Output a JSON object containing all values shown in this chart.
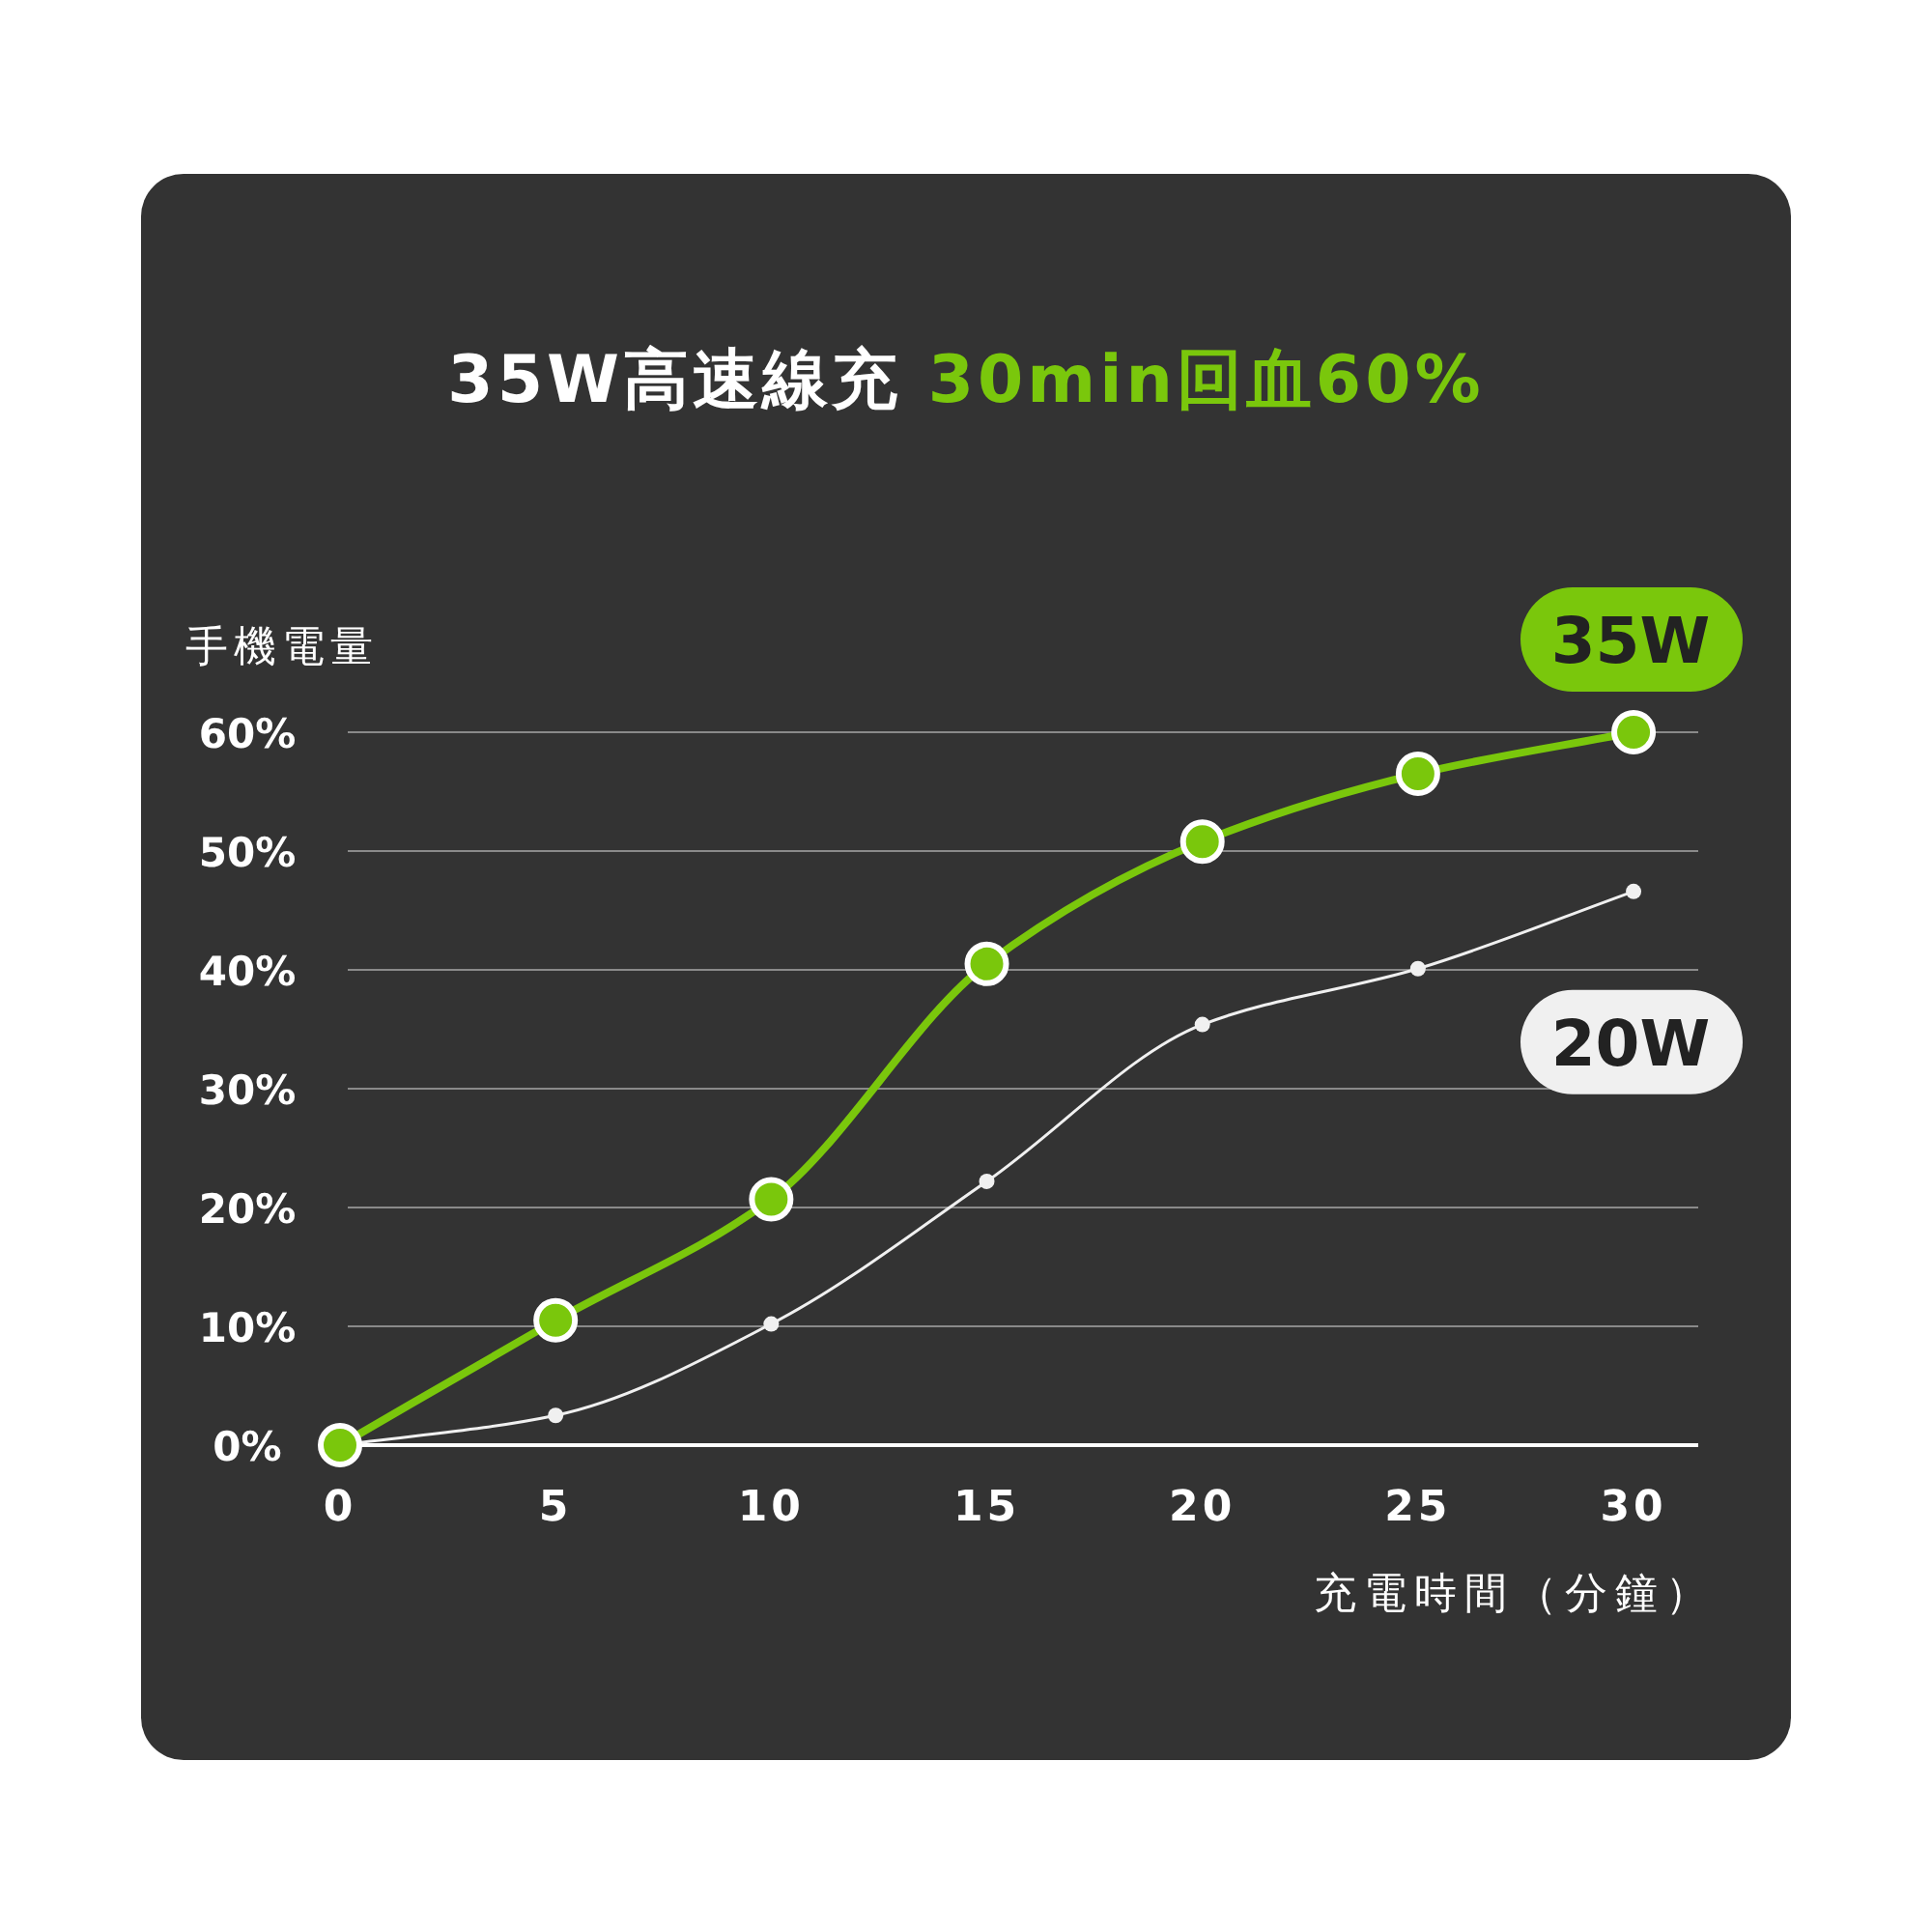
{
  "chart_data": {
    "type": "line",
    "title": "35W高速線充 30min回血60%",
    "ylabel": "手機電量",
    "xlabel": "充電時間（分鐘）",
    "x": [
      0,
      5,
      10,
      15,
      20,
      25,
      30
    ],
    "series": [
      {
        "name": "35W",
        "color": "#7ac70c",
        "values": [
          0,
          10.5,
          20.7,
          40.5,
          50.8,
          56.5,
          60
        ]
      },
      {
        "name": "20W",
        "color": "#f0f0f0",
        "values": [
          0,
          2.5,
          10.2,
          22.2,
          35.4,
          40.1,
          46.6
        ]
      }
    ],
    "xlim": [
      0,
      31.5
    ],
    "ylim": [
      0,
      60
    ],
    "xticks": [
      0,
      5,
      10,
      15,
      20,
      25,
      30
    ],
    "yticks": [
      {
        "value": 0,
        "label": "0%"
      },
      {
        "value": 10,
        "label": "10%"
      },
      {
        "value": 20,
        "label": "20%"
      },
      {
        "value": 30,
        "label": "30%"
      },
      {
        "value": 40,
        "label": "40%"
      },
      {
        "value": 50,
        "label": "50%"
      },
      {
        "value": 60,
        "label": "60%"
      }
    ],
    "grid": "y",
    "legend": false,
    "marker": "circle",
    "line_style": "solid"
  }
}
